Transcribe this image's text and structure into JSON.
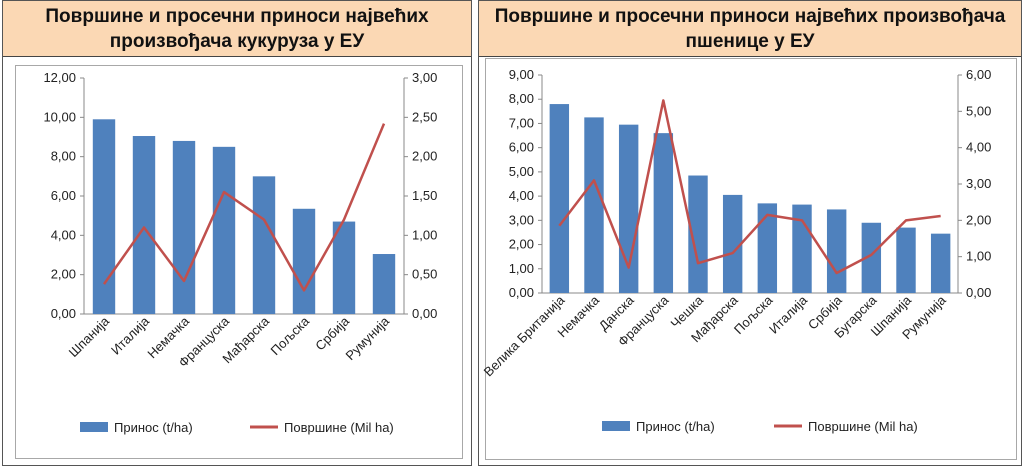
{
  "charts": [
    {
      "title": "Површине и просечни приноси највећих произвођача кукуруза у ЕУ",
      "chart_data": {
        "type": "bar",
        "categories": [
          "Шпанија",
          "Италија",
          "Немачка",
          "Француска",
          "Мађарска",
          "Пољска",
          "Србија",
          "Румунија"
        ],
        "series": [
          {
            "name": "Принос (t/ha)",
            "type": "bar",
            "axis": "left",
            "color": "#4f81bd",
            "values": [
              9.9,
              9.05,
              8.8,
              8.5,
              7.0,
              5.35,
              4.7,
              3.05
            ]
          },
          {
            "name": "Површине (Mil ha)",
            "type": "line",
            "axis": "right",
            "color": "#c0504d",
            "values": [
              0.38,
              1.1,
              0.42,
              1.55,
              1.2,
              0.3,
              1.2,
              2.42
            ]
          }
        ],
        "y_left": {
          "min": 0,
          "max": 12,
          "step": 2,
          "tick_labels": [
            "0,00",
            "2,00",
            "4,00",
            "6,00",
            "8,00",
            "10,00",
            "12,00"
          ]
        },
        "y_right": {
          "min": 0,
          "max": 3,
          "step": 0.5,
          "tick_labels": [
            "0,00",
            "0,50",
            "1,00",
            "1,50",
            "2,00",
            "2,50",
            "3,00"
          ]
        },
        "legend": {
          "position": "bottom",
          "items": [
            "Принос (t/ha)",
            "Површине (Mil ha)"
          ]
        },
        "grid": false
      }
    },
    {
      "title": "Површине и просечни приноси највећих произвођача пшенице у ЕУ",
      "chart_data": {
        "type": "bar",
        "categories": [
          "Велика Британија",
          "Немачка",
          "Данска",
          "Француска",
          "Чешка",
          "Мађарска",
          "Пољска",
          "Италија",
          "Србија",
          "Бугарска",
          "Шпанија",
          "Румунија"
        ],
        "series": [
          {
            "name": "Принос (t/ha)",
            "type": "bar",
            "axis": "left",
            "color": "#4f81bd",
            "values": [
              7.8,
              7.25,
              6.95,
              6.6,
              4.85,
              4.05,
              3.7,
              3.65,
              3.45,
              2.9,
              2.7,
              2.45
            ]
          },
          {
            "name": "Површине (Mil ha)",
            "type": "line",
            "axis": "right",
            "color": "#c0504d",
            "values": [
              1.85,
              3.1,
              0.7,
              5.3,
              0.82,
              1.1,
              2.15,
              2.0,
              0.55,
              1.05,
              2.0,
              2.12
            ]
          }
        ],
        "y_left": {
          "min": 0,
          "max": 9,
          "step": 1,
          "tick_labels": [
            "0,00",
            "1,00",
            "2,00",
            "3,00",
            "4,00",
            "5,00",
            "6,00",
            "7,00",
            "8,00",
            "9,00"
          ]
        },
        "y_right": {
          "min": 0,
          "max": 6,
          "step": 1,
          "tick_labels": [
            "0,00",
            "1,00",
            "2,00",
            "3,00",
            "4,00",
            "5,00",
            "6,00"
          ]
        },
        "legend": {
          "position": "bottom",
          "items": [
            "Принос (t/ha)",
            "Површине (Mil ha)"
          ]
        },
        "grid": false
      }
    }
  ]
}
